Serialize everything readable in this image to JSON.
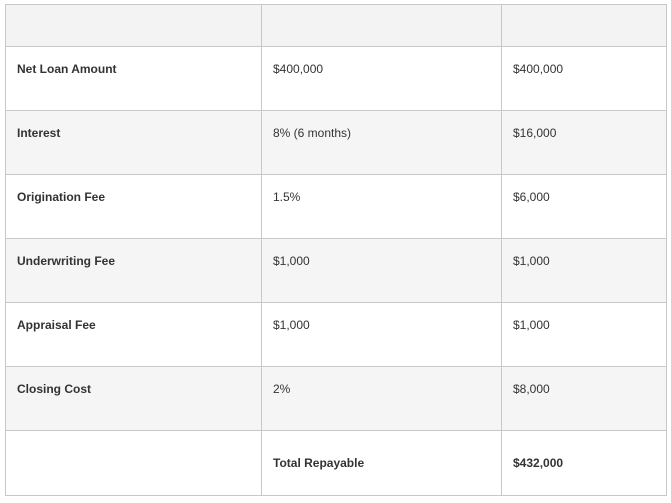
{
  "table": {
    "header": [
      "",
      "",
      ""
    ],
    "rows": [
      {
        "label": "Net Loan Amount",
        "rate": "$400,000",
        "amount": "$400,000"
      },
      {
        "label": "Interest",
        "rate": "8% (6 months)",
        "amount": "$16,000"
      },
      {
        "label": "Origination Fee",
        "rate": "1.5%",
        "amount": "$6,000"
      },
      {
        "label": "Underwriting Fee",
        "rate": "$1,000",
        "amount": "$1,000"
      },
      {
        "label": "Appraisal Fee",
        "rate": "$1,000",
        "amount": "$1,000"
      },
      {
        "label": "Closing Cost",
        "rate": "2%",
        "amount": "$8,000"
      }
    ],
    "total": {
      "label": "",
      "rate": "Total Repayable",
      "amount": "$432,000"
    }
  }
}
